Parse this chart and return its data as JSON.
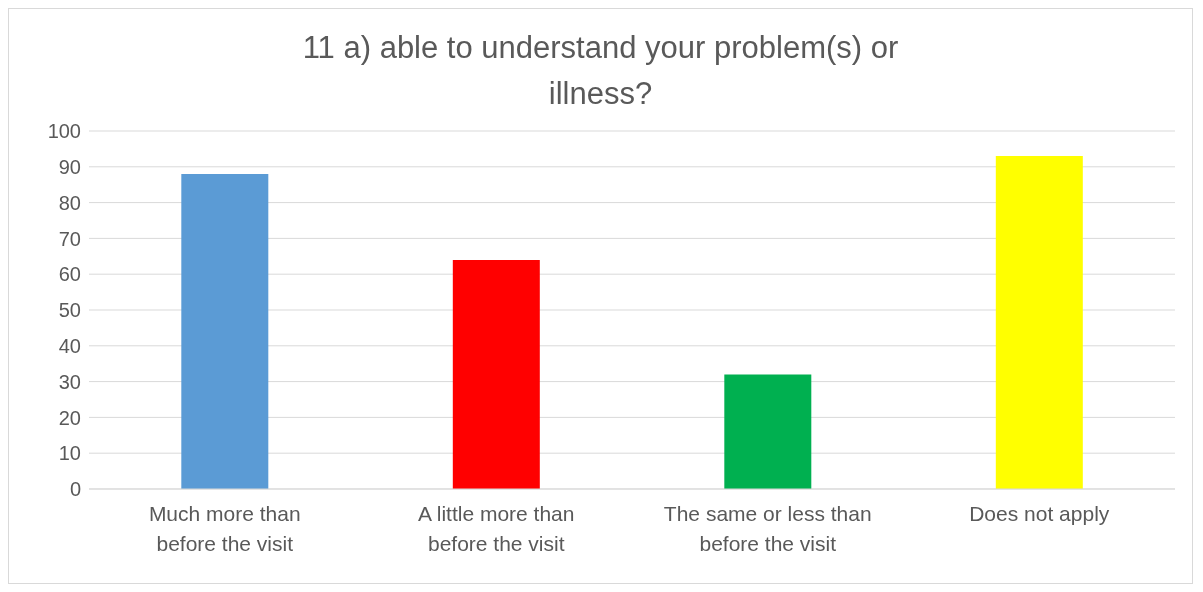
{
  "chart_data": {
    "type": "bar",
    "title": "11 a) able to understand your problem(s) or illness?",
    "categories": [
      "Much more than before the visit",
      "A little more than before the visit",
      "The same or less than before the visit",
      "Does not apply"
    ],
    "values": [
      88,
      64,
      32,
      93
    ],
    "colors": [
      "#5b9bd5",
      "#ff0000",
      "#00b050",
      "#ffff00"
    ],
    "ylim": [
      0,
      100
    ],
    "yticks": [
      0,
      10,
      20,
      30,
      40,
      50,
      60,
      70,
      80,
      90,
      100
    ],
    "grid": "y"
  }
}
